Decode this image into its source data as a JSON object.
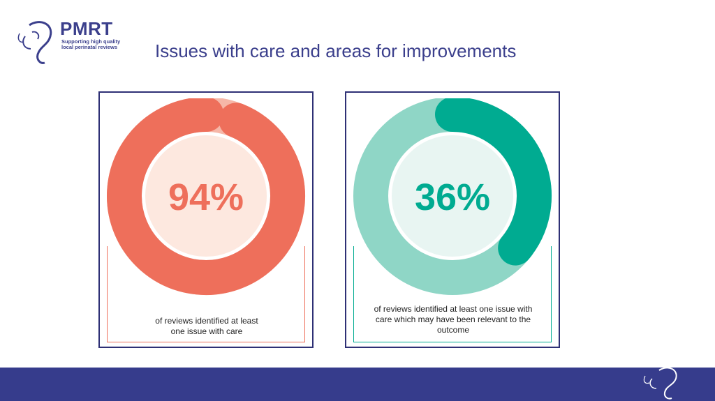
{
  "logo": {
    "brand": "PMRT",
    "tagline_line1": "Supporting high quality",
    "tagline_line2": "local perinatal reviews"
  },
  "title": "Issues with care and areas for improvements",
  "colors": {
    "navy": "#3b3f8c",
    "coral": "#ee6f5b",
    "coral_light": "#f6b7a8",
    "coral_inner": "#fde8df",
    "teal": "#00ab91",
    "teal_light": "#8fd6c6",
    "teal_inner": "#e8f5f2"
  },
  "chart_data": [
    {
      "type": "pie",
      "values": [
        94,
        6
      ],
      "percent_label": "94%",
      "caption_line1": "of reviews identified at least",
      "caption_line2": "one issue with care"
    },
    {
      "type": "pie",
      "values": [
        36,
        64
      ],
      "percent_label": "36%",
      "caption_line1": "of reviews identified at least one issue with",
      "caption_line2": "care which may have been relevant to the",
      "caption_line3": "outcome"
    }
  ]
}
